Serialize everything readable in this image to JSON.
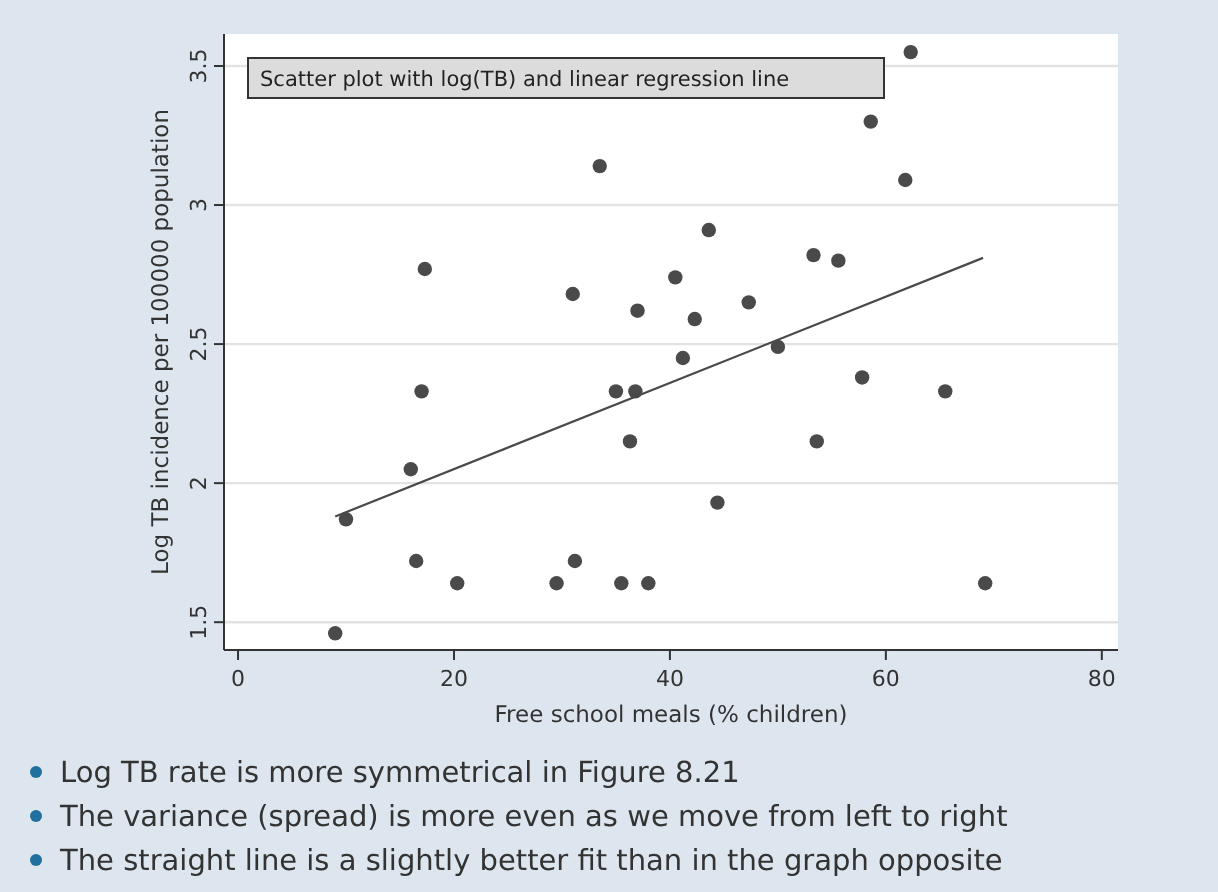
{
  "chart_data": {
    "type": "scatter",
    "title": "Scatter plot with log(TB) and linear regression line",
    "xlabel": "Free school meals (% children)",
    "ylabel": "Log TB incidence per 100000 population",
    "xlim": [
      -1.3,
      81.5
    ],
    "ylim": [
      1.4,
      3.615
    ],
    "xticks": [
      0,
      20,
      40,
      60,
      80
    ],
    "yticks": [
      1.5,
      2,
      2.5,
      3,
      3.5
    ],
    "grid": "y",
    "marker": "circle",
    "series": [
      {
        "color": "#4a4a4a",
        "x": [
          9,
          10,
          16,
          16.5,
          17,
          17.3,
          20.3,
          29.5,
          31,
          31.2,
          33.5,
          35,
          35.5,
          36.3,
          36.8,
          37,
          38,
          40.5,
          41.2,
          42.3,
          43.6,
          44.4,
          47.3,
          50,
          53.3,
          53.6,
          55.6,
          57.8,
          58.6,
          61.8,
          62.3,
          65.5,
          69.2
        ],
        "values": [
          1.46,
          1.87,
          2.05,
          1.72,
          2.33,
          2.77,
          1.64,
          1.64,
          2.68,
          1.72,
          3.14,
          2.33,
          1.64,
          2.15,
          2.33,
          2.62,
          1.64,
          2.74,
          2.45,
          2.59,
          2.91,
          1.93,
          2.65,
          2.49,
          2.82,
          2.15,
          2.8,
          2.38,
          3.3,
          3.09,
          3.55,
          2.33,
          1.64
        ]
      },
      {
        "type": "line",
        "color": "#4a4a4a",
        "x": [
          9,
          69
        ],
        "values": [
          1.88,
          2.81
        ],
        "line_style": "solid",
        "marker": "none"
      }
    ],
    "annotations": [
      "Log TB rate is more symmetrical in Figure 8.21",
      "The variance (spread) is more even as we move from left to right",
      "The straight line is a slightly better fit than in the graph opposite"
    ]
  }
}
